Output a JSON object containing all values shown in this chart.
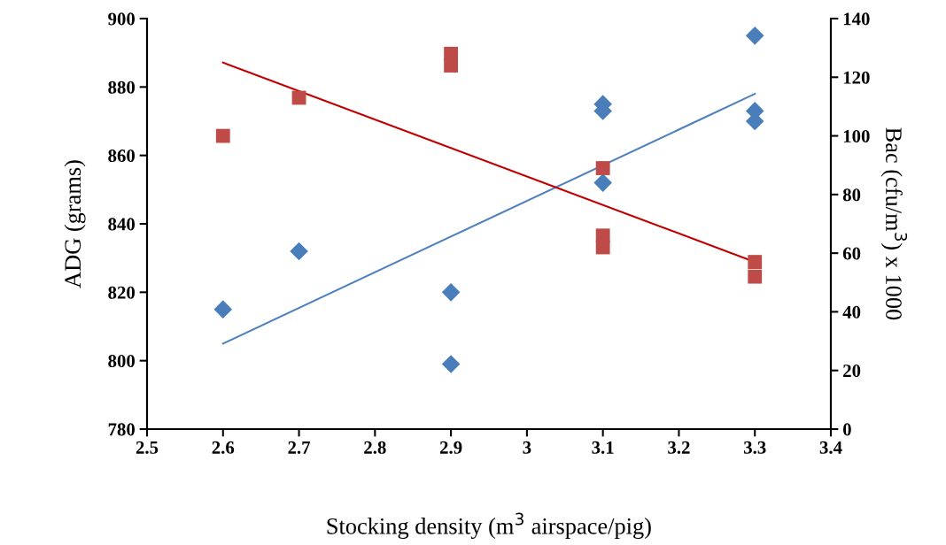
{
  "chart_data": {
    "type": "scatter",
    "xlabel": "Stocking density (m$^{3}$ airspace/pig)",
    "ylabel": "ADG (grams)",
    "y2label": "Bac (cfu/m$^{3}$) x 1000",
    "xlim": [
      2.5,
      3.4
    ],
    "xticks": [
      2.5,
      2.6,
      2.7,
      2.8,
      2.9,
      3,
      3.1,
      3.2,
      3.3,
      3.4
    ],
    "ylim": [
      780,
      900
    ],
    "yticks": [
      780,
      800,
      820,
      840,
      860,
      880,
      900
    ],
    "y2lim": [
      0,
      140
    ],
    "y2ticks": [
      0,
      20,
      40,
      60,
      80,
      100,
      120,
      140
    ],
    "series": [
      {
        "marker": "diamond",
        "color": "#4a7ebb",
        "x": [
          2.6,
          2.7,
          2.9,
          2.9,
          3.1,
          3.1,
          3.1,
          3.3,
          3.3,
          3.3
        ],
        "values": [
          815,
          832,
          820,
          799,
          875,
          873,
          852,
          895,
          873,
          870
        ]
      },
      {
        "marker": "square",
        "color": "#be4b48",
        "axis": "y2",
        "x": [
          2.6,
          2.7,
          2.9,
          2.9,
          3.1,
          3.1,
          3.1,
          3.3,
          3.3
        ],
        "values": [
          100,
          113,
          128,
          124,
          89,
          66,
          62,
          57,
          52
        ]
      },
      {
        "type": "line",
        "color": "#4f81bd",
        "x": [
          2.6,
          3.3
        ],
        "values": [
          805,
          878
        ]
      },
      {
        "type": "line",
        "color": "#c00000",
        "axis": "y2",
        "x": [
          2.6,
          3.3
        ],
        "values": [
          125,
          57
        ]
      }
    ]
  }
}
